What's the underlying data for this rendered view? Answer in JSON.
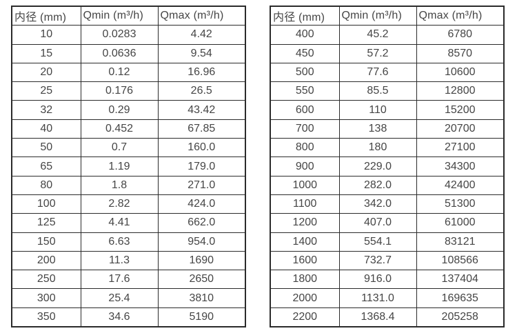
{
  "colors": {
    "background": "#ffffff",
    "table_border": "#2a2a2a",
    "text": "#454545"
  },
  "chart_data": [
    {
      "type": "table",
      "columns": [
        "内径 (mm)",
        "Qmin (m³/h)",
        "Qmax (m³/h)"
      ],
      "rows": [
        [
          "10",
          "0.0283",
          "4.42"
        ],
        [
          "15",
          "0.0636",
          "9.54"
        ],
        [
          "20",
          "0.12",
          "16.96"
        ],
        [
          "25",
          "0.176",
          "26.5"
        ],
        [
          "32",
          "0.29",
          "43.42"
        ],
        [
          "40",
          "0.452",
          "67.85"
        ],
        [
          "50",
          "0.7",
          "160.0"
        ],
        [
          "65",
          "1.19",
          "179.0"
        ],
        [
          "80",
          "1.8",
          "271.0"
        ],
        [
          "100",
          "2.82",
          "424.0"
        ],
        [
          "125",
          "4.41",
          "662.0"
        ],
        [
          "150",
          "6.63",
          "954.0"
        ],
        [
          "200",
          "11.3",
          "1690"
        ],
        [
          "250",
          "17.6",
          "2650"
        ],
        [
          "300",
          "25.4",
          "3810"
        ],
        [
          "350",
          "34.6",
          "5190"
        ]
      ]
    },
    {
      "type": "table",
      "columns": [
        "内径 (mm)",
        "Qmin (m³/h)",
        "Qmax (m³/h)"
      ],
      "rows": [
        [
          "400",
          "45.2",
          "6780"
        ],
        [
          "450",
          "57.2",
          "8570"
        ],
        [
          "500",
          "77.6",
          "10600"
        ],
        [
          "550",
          "85.5",
          "12800"
        ],
        [
          "600",
          "110",
          "15200"
        ],
        [
          "700",
          "138",
          "20700"
        ],
        [
          "800",
          "180",
          "27100"
        ],
        [
          "900",
          "229.0",
          "34300"
        ],
        [
          "1000",
          "282.0",
          "42400"
        ],
        [
          "1100",
          "342.0",
          "51300"
        ],
        [
          "1200",
          "407.0",
          "61000"
        ],
        [
          "1400",
          "554.1",
          "83121"
        ],
        [
          "1600",
          "732.7",
          "108566"
        ],
        [
          "1800",
          "916.0",
          "137404"
        ],
        [
          "2000",
          "1131.0",
          "169635"
        ],
        [
          "2200",
          "1368.4",
          "205258"
        ]
      ]
    }
  ]
}
